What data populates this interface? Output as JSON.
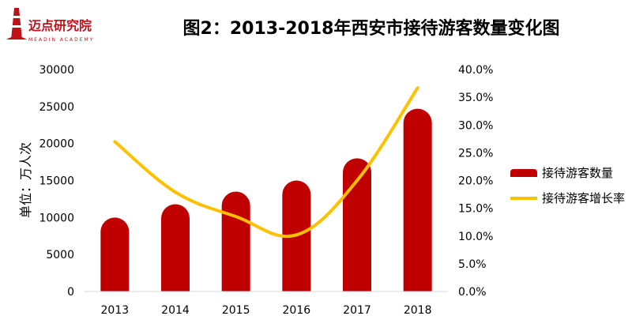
{
  "title": "图2：2013-2018年西安市接待游客数量变化图",
  "logo": {
    "name": "迈点研究院",
    "sub": "MEADIN ACADEMY",
    "color": "#c0111a"
  },
  "colors": {
    "bar": "#c00000",
    "line": "#ffc000"
  },
  "chart_data": {
    "type": "bar",
    "categories": [
      "2013",
      "2014",
      "2015",
      "2016",
      "2017",
      "2018"
    ],
    "series": [
      {
        "name": "接待游客数量",
        "type": "bar",
        "axis": "left",
        "values": [
          10000,
          11800,
          13500,
          15000,
          18000,
          24700
        ]
      },
      {
        "name": "接待游客增长率",
        "type": "line",
        "axis": "right",
        "values": [
          27.0,
          17.9,
          13.5,
          10.2,
          20.0,
          36.7
        ]
      }
    ],
    "ylabel": "单位：万人次",
    "ylim": [
      0,
      30000
    ],
    "y2lim": [
      0,
      40
    ],
    "yticks": [
      "0",
      "5000",
      "10000",
      "15000",
      "20000",
      "25000",
      "30000"
    ],
    "y2ticks": [
      "0.0%",
      "5.0%",
      "10.0%",
      "15.0%",
      "20.0%",
      "25.0%",
      "30.0%",
      "35.0%",
      "40.0%"
    ],
    "legend_position": "right"
  }
}
